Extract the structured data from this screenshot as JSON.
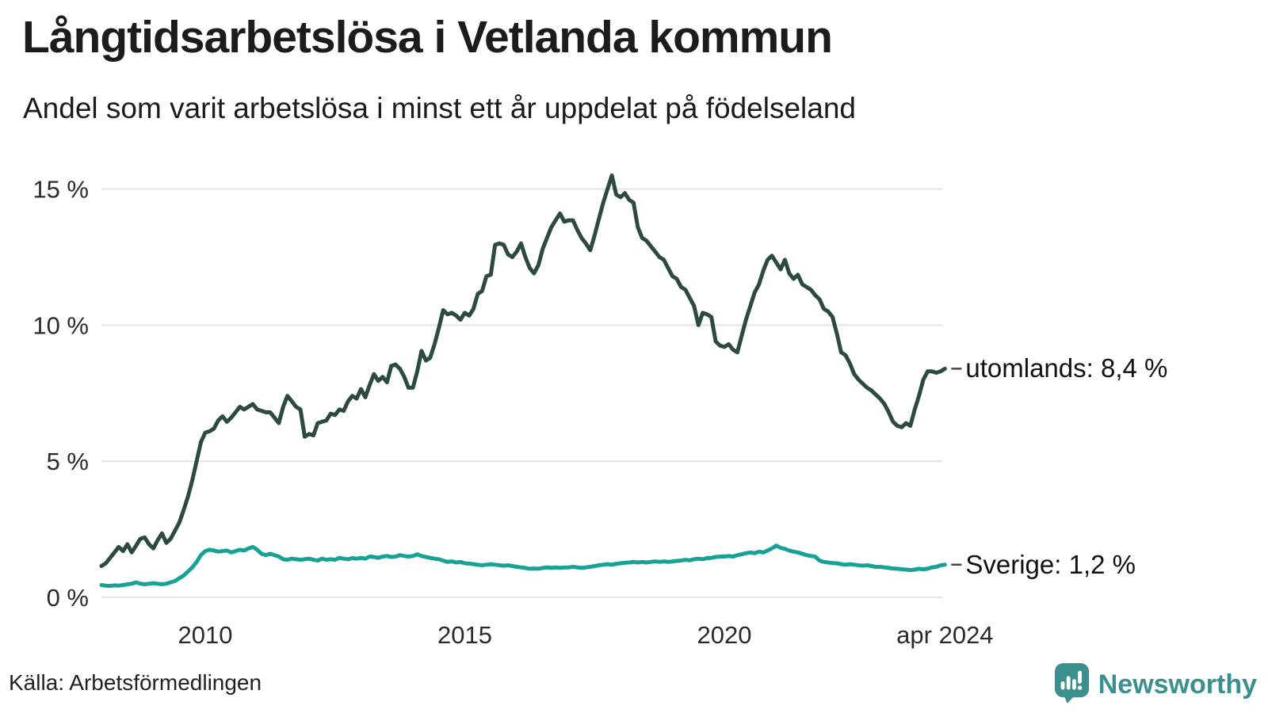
{
  "header": {
    "title": "Långtidsarbetslösa i Vetlanda kommun",
    "subtitle": "Andel som varit arbetslösa i minst ett år uppdelat på födelseland"
  },
  "footer": {
    "source": "Källa: Arbetsförmedlingen",
    "brand": "Newsworthy"
  },
  "colors": {
    "utomlands_line": "#2c4a42",
    "sverige_line": "#18a296",
    "grid": "#e8e8eb",
    "brand_teal": "#3a908c",
    "tick_text": "#2a2a2a"
  },
  "chart_data": {
    "type": "line",
    "title": "Långtidsarbetslösa i Vetlanda kommun",
    "subtitle": "Andel som varit arbetslösa i minst ett år uppdelat på födelseland",
    "x_unit": "decimal_year_monthly",
    "x_range": [
      2008.0,
      2024.25
    ],
    "ylim": [
      0,
      16
    ],
    "grid": true,
    "legend_position": "end-of-line-labels",
    "y_ticks": [
      {
        "value": 0,
        "label": "0 %"
      },
      {
        "value": 5,
        "label": "5 %"
      },
      {
        "value": 10,
        "label": "10 %"
      },
      {
        "value": 15,
        "label": "15 %"
      }
    ],
    "x_ticks": [
      {
        "year": 2010,
        "label": "2010"
      },
      {
        "year": 2015,
        "label": "2015"
      },
      {
        "year": 2020,
        "label": "2020"
      },
      {
        "year": 2024.25,
        "label": "apr 2024"
      }
    ],
    "series": [
      {
        "name": "utomlands",
        "label": "utomlands: 8,4 %",
        "end_value": "8,4 %",
        "color": "#2c4a42",
        "start_year": 2008,
        "step_months": 1,
        "values": [
          1.15,
          1.25,
          1.45,
          1.65,
          1.85,
          1.7,
          1.95,
          1.65,
          1.9,
          2.15,
          2.2,
          1.95,
          1.8,
          2.1,
          2.35,
          2.0,
          2.15,
          2.45,
          2.75,
          3.2,
          3.7,
          4.3,
          5.0,
          5.7,
          6.05,
          6.1,
          6.2,
          6.5,
          6.65,
          6.45,
          6.6,
          6.8,
          7.0,
          6.9,
          7.0,
          7.1,
          6.9,
          6.85,
          6.8,
          6.8,
          6.6,
          6.4,
          7.0,
          7.4,
          7.2,
          7.0,
          6.9,
          5.9,
          6.0,
          5.95,
          6.4,
          6.45,
          6.5,
          6.75,
          6.7,
          6.9,
          6.85,
          7.2,
          7.4,
          7.3,
          7.65,
          7.35,
          7.8,
          8.2,
          7.95,
          8.1,
          7.9,
          8.5,
          8.55,
          8.4,
          8.1,
          7.7,
          7.7,
          8.3,
          9.05,
          8.7,
          8.8,
          9.3,
          9.9,
          10.55,
          10.4,
          10.45,
          10.35,
          10.2,
          10.45,
          10.35,
          10.6,
          11.15,
          11.25,
          11.8,
          11.85,
          12.95,
          13.0,
          12.95,
          12.6,
          12.5,
          12.7,
          13.0,
          12.5,
          12.1,
          11.9,
          12.2,
          12.8,
          13.2,
          13.6,
          13.85,
          14.1,
          13.8,
          13.85,
          13.85,
          13.5,
          13.2,
          13.0,
          12.75,
          13.3,
          13.9,
          14.5,
          15.0,
          15.5,
          14.8,
          14.7,
          14.85,
          14.6,
          14.5,
          13.6,
          13.2,
          13.1,
          12.9,
          12.7,
          12.5,
          12.4,
          12.1,
          11.8,
          11.7,
          11.4,
          11.3,
          11.0,
          10.7,
          10.0,
          10.45,
          10.4,
          10.3,
          9.4,
          9.25,
          9.2,
          9.3,
          9.1,
          9.0,
          9.6,
          10.2,
          10.7,
          11.2,
          11.5,
          12.0,
          12.4,
          12.55,
          12.3,
          12.05,
          12.4,
          11.9,
          11.7,
          11.85,
          11.5,
          11.4,
          11.3,
          11.1,
          10.95,
          10.6,
          10.5,
          10.3,
          9.7,
          9.0,
          8.9,
          8.6,
          8.2,
          8.0,
          7.85,
          7.7,
          7.6,
          7.45,
          7.3,
          7.1,
          6.8,
          6.45,
          6.3,
          6.25,
          6.4,
          6.3,
          6.9,
          7.4,
          8.0,
          8.3,
          8.3,
          8.25,
          8.3,
          8.4
        ]
      },
      {
        "name": "sverige",
        "label": "Sverige: 1,2 %",
        "end_value": "1,2 %",
        "color": "#18a296",
        "start_year": 2008,
        "step_months": 1,
        "values": [
          0.45,
          0.43,
          0.42,
          0.44,
          0.43,
          0.45,
          0.48,
          0.5,
          0.55,
          0.5,
          0.48,
          0.5,
          0.52,
          0.5,
          0.48,
          0.5,
          0.55,
          0.6,
          0.7,
          0.8,
          0.95,
          1.1,
          1.3,
          1.55,
          1.7,
          1.75,
          1.72,
          1.68,
          1.7,
          1.72,
          1.65,
          1.7,
          1.75,
          1.72,
          1.8,
          1.85,
          1.75,
          1.6,
          1.55,
          1.6,
          1.55,
          1.5,
          1.4,
          1.38,
          1.42,
          1.4,
          1.38,
          1.4,
          1.42,
          1.38,
          1.35,
          1.42,
          1.38,
          1.4,
          1.38,
          1.45,
          1.42,
          1.4,
          1.44,
          1.42,
          1.45,
          1.42,
          1.5,
          1.48,
          1.45,
          1.5,
          1.52,
          1.48,
          1.5,
          1.55,
          1.52,
          1.5,
          1.52,
          1.58,
          1.52,
          1.48,
          1.45,
          1.42,
          1.4,
          1.35,
          1.3,
          1.32,
          1.28,
          1.3,
          1.25,
          1.24,
          1.22,
          1.2,
          1.18,
          1.2,
          1.22,
          1.2,
          1.18,
          1.16,
          1.18,
          1.15,
          1.12,
          1.1,
          1.08,
          1.05,
          1.06,
          1.05,
          1.08,
          1.1,
          1.08,
          1.1,
          1.08,
          1.1,
          1.1,
          1.12,
          1.1,
          1.08,
          1.1,
          1.12,
          1.15,
          1.18,
          1.2,
          1.22,
          1.2,
          1.23,
          1.25,
          1.27,
          1.28,
          1.3,
          1.28,
          1.3,
          1.28,
          1.3,
          1.32,
          1.3,
          1.32,
          1.3,
          1.32,
          1.34,
          1.35,
          1.38,
          1.36,
          1.4,
          1.42,
          1.4,
          1.44,
          1.45,
          1.48,
          1.5,
          1.5,
          1.52,
          1.5,
          1.55,
          1.58,
          1.62,
          1.65,
          1.62,
          1.68,
          1.65,
          1.72,
          1.8,
          1.9,
          1.82,
          1.78,
          1.72,
          1.68,
          1.65,
          1.6,
          1.55,
          1.52,
          1.5,
          1.35,
          1.3,
          1.28,
          1.26,
          1.25,
          1.22,
          1.2,
          1.22,
          1.2,
          1.18,
          1.16,
          1.18,
          1.15,
          1.12,
          1.12,
          1.1,
          1.08,
          1.06,
          1.05,
          1.03,
          1.02,
          1.0,
          1.02,
          1.05,
          1.03,
          1.05,
          1.1,
          1.12,
          1.18,
          1.2
        ]
      }
    ]
  }
}
